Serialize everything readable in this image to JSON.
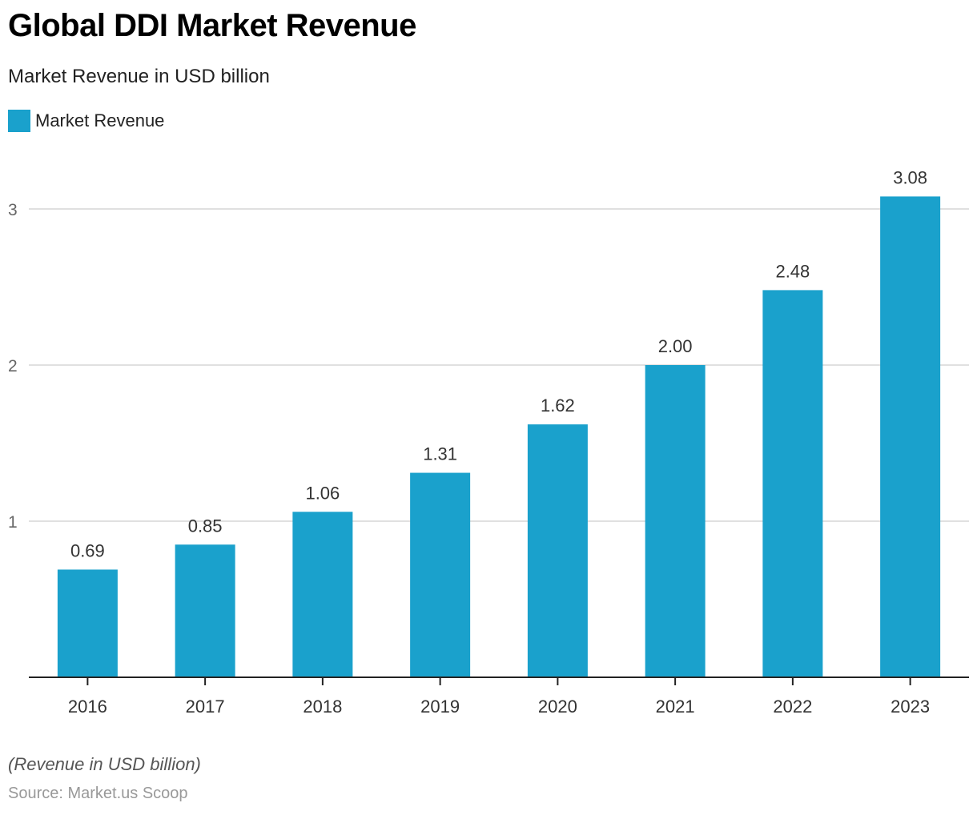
{
  "title": "Global DDI Market Revenue",
  "subtitle": "Market Revenue in USD billion",
  "note": "(Revenue in USD billion)",
  "source": "Source: Market.us Scoop",
  "colors": {
    "bar": "#1aa1cc",
    "grid": "#d6d6d6",
    "axis": "#222222"
  },
  "chart_data": {
    "type": "bar",
    "title": "Global DDI Market Revenue",
    "subtitle": "Market Revenue in USD billion",
    "xlabel": "",
    "ylabel": "",
    "categories": [
      "2016",
      "2017",
      "2018",
      "2019",
      "2020",
      "2021",
      "2022",
      "2023"
    ],
    "series": [
      {
        "name": "Market Revenue",
        "values": [
          0.69,
          0.85,
          1.06,
          1.31,
          1.62,
          2.0,
          2.48,
          3.08
        ],
        "labels": [
          "0.69",
          "0.85",
          "1.06",
          "1.31",
          "1.62",
          "2.00",
          "2.48",
          "3.08"
        ]
      }
    ],
    "yticks": [
      1,
      2,
      3
    ],
    "ylim": [
      0,
      3.2
    ],
    "grid": true,
    "legend": "top-left"
  }
}
